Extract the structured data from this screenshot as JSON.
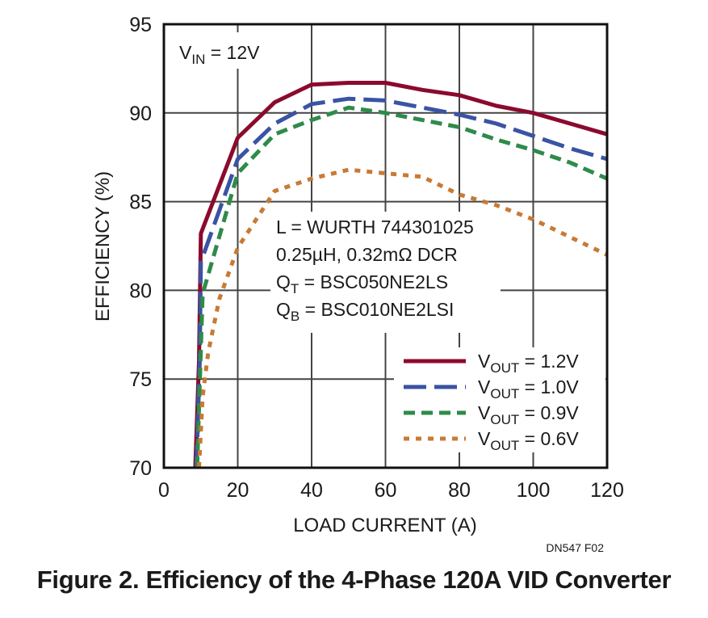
{
  "chart_data": {
    "type": "line",
    "title": "",
    "xlabel": "LOAD CURRENT (A)",
    "ylabel": "EFFICIENCY (%)",
    "xlim": [
      0,
      120
    ],
    "ylim": [
      70,
      95
    ],
    "xticks": [
      0,
      20,
      40,
      60,
      80,
      100,
      120
    ],
    "yticks": [
      70,
      75,
      80,
      85,
      90,
      95
    ],
    "grid": true,
    "legend_position": "bottom-right",
    "annotations": {
      "vin": {
        "main": "V",
        "sub": "IN",
        "rest": " = 12V"
      },
      "components": [
        {
          "main": "L = WURTH 744301025",
          "sub": "",
          "rest": ""
        },
        {
          "main": "0.25µH, 0.32mΩ DCR",
          "sub": "",
          "rest": ""
        },
        {
          "main": "Q",
          "sub": "T",
          "rest": " = BSC050NE2LS"
        },
        {
          "main": "Q",
          "sub": "B",
          "rest": " = BSC010NE2LSI"
        }
      ],
      "figure_ref": "DN547 F02"
    },
    "series": [
      {
        "name": "VOUT = 1.2V",
        "label_main": "V",
        "label_sub": "OUT",
        "label_rest": " = 1.2V",
        "color": "#8b0a2e",
        "dash": "solid",
        "x": [
          8.5,
          9.5,
          10,
          20,
          30,
          40,
          50,
          60,
          70,
          80,
          90,
          100,
          110,
          120
        ],
        "y": [
          70,
          76,
          83.2,
          88.6,
          90.6,
          91.6,
          91.7,
          91.7,
          91.3,
          91.0,
          90.4,
          90.0,
          89.4,
          88.8
        ]
      },
      {
        "name": "VOUT = 1.0V",
        "label_main": "V",
        "label_sub": "OUT",
        "label_rest": " = 1.0V",
        "color": "#3a53a4",
        "dash": "long-dash",
        "x": [
          8.8,
          9.7,
          10,
          20,
          30,
          40,
          50,
          60,
          70,
          80,
          90,
          100,
          110,
          120
        ],
        "y": [
          70,
          76,
          81.6,
          87.4,
          89.4,
          90.5,
          90.8,
          90.7,
          90.3,
          89.9,
          89.4,
          88.7,
          88.0,
          87.4
        ]
      },
      {
        "name": "VOUT = 0.9V",
        "label_main": "V",
        "label_sub": "OUT",
        "label_rest": " = 0.9V",
        "color": "#2e8b4a",
        "dash": "dash",
        "x": [
          9.0,
          9.9,
          10.5,
          20,
          30,
          40,
          50,
          60,
          70,
          80,
          90,
          100,
          110,
          120
        ],
        "y": [
          70,
          76,
          79.8,
          86.6,
          88.8,
          89.6,
          90.3,
          90.0,
          89.6,
          89.2,
          88.5,
          87.9,
          87.2,
          86.3
        ]
      },
      {
        "name": "VOUT = 0.6V",
        "label_main": "V",
        "label_sub": "OUT",
        "label_rest": " = 0.6V",
        "color": "#c87a35",
        "dash": "dot",
        "x": [
          9.5,
          10.5,
          12,
          15,
          20,
          30,
          40,
          50,
          60,
          70,
          80,
          90,
          100,
          110,
          120
        ],
        "y": [
          70,
          74,
          76.5,
          79.5,
          82.4,
          85.6,
          86.3,
          86.8,
          86.6,
          86.4,
          85.4,
          84.8,
          84.0,
          83.0,
          82.0
        ]
      }
    ]
  },
  "caption": "Figure 2. Efficiency of the 4-Phase 120A VID Converter"
}
